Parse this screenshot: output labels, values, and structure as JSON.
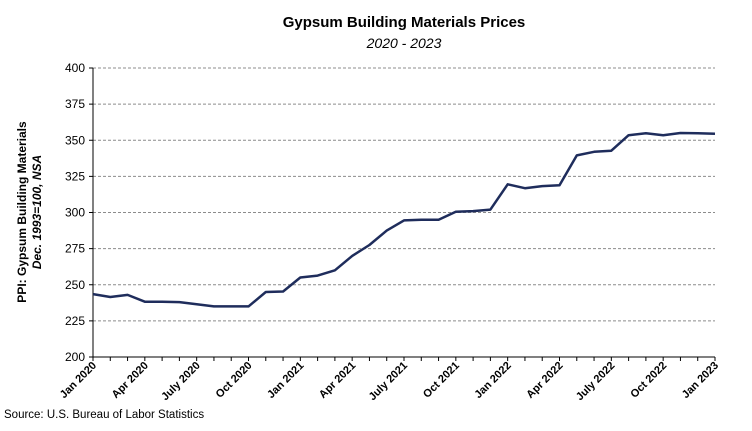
{
  "chart_data": {
    "type": "line",
    "title": "Gypsum Building Materials Prices",
    "subtitle": "2020 - 2023",
    "ylabel": "PPI: Gypsum Building Materials",
    "ylabel_line2": "Dec. 1993=100, NSA",
    "xlabel": "",
    "ylim": [
      200,
      400
    ],
    "yticks": [
      200,
      225,
      250,
      275,
      300,
      325,
      350,
      375,
      400
    ],
    "grid": true,
    "x_tick_labels": [
      "Jan 2020",
      "Apr 2020",
      "July 2020",
      "Oct 2020",
      "Jan 2021",
      "Apr 2021",
      "July 2021",
      "Oct 2021",
      "Jan 2022",
      "Apr 2022",
      "July 2022",
      "Oct 2022",
      "Jan 2023"
    ],
    "series": [
      {
        "name": "",
        "color": "#1f2d5c",
        "x": [
          "Jan 2020",
          "Feb 2020",
          "Mar 2020",
          "Apr 2020",
          "May 2020",
          "Jun 2020",
          "Jul 2020",
          "Aug 2020",
          "Sep 2020",
          "Oct 2020",
          "Nov 2020",
          "Dec 2020",
          "Jan 2021",
          "Feb 2021",
          "Mar 2021",
          "Apr 2021",
          "May 2021",
          "Jun 2021",
          "Jul 2021",
          "Aug 2021",
          "Sep 2021",
          "Oct 2021",
          "Nov 2021",
          "Dec 2021",
          "Jan 2022",
          "Feb 2022",
          "Mar 2022",
          "Apr 2022",
          "May 2022",
          "Jun 2022",
          "Jul 2022",
          "Aug 2022",
          "Sep 2022",
          "Oct 2022",
          "Nov 2022",
          "Dec 2022",
          "Jan 2023"
        ],
        "values": [
          243.5,
          241.5,
          243,
          238.3,
          238.3,
          238,
          236.5,
          235,
          235,
          235,
          245,
          245.3,
          255,
          256.3,
          260,
          270,
          277.5,
          287.5,
          294.5,
          295,
          295,
          300.5,
          301,
          302,
          319.5,
          316.8,
          318.3,
          318.8,
          339.5,
          342,
          342.8,
          353.5,
          354.8,
          353.5,
          355,
          354.8,
          354.5
        ]
      }
    ]
  },
  "footer": {
    "source": "Source: U.S. Bureau of Labor Statistics"
  }
}
